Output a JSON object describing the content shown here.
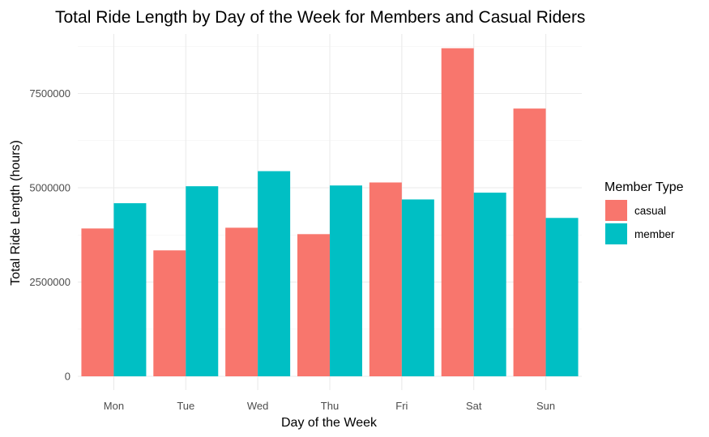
{
  "chart_data": {
    "type": "bar",
    "title": "Total Ride Length by Day of the Week for Members and Casual Riders",
    "xlabel": "Day of the Week",
    "ylabel": "Total Ride Length (hours)",
    "categories": [
      "Mon",
      "Tue",
      "Wed",
      "Thu",
      "Fri",
      "Sat",
      "Sun"
    ],
    "series": [
      {
        "name": "casual",
        "color": "#F8766D",
        "values": [
          3920000,
          3340000,
          3940000,
          3770000,
          5140000,
          8700000,
          7100000
        ]
      },
      {
        "name": "member",
        "color": "#00BFC4",
        "values": [
          4590000,
          5040000,
          5440000,
          5060000,
          4690000,
          4870000,
          4200000
        ]
      }
    ],
    "y_ticks": [
      0,
      2500000,
      5000000,
      7500000
    ],
    "y_tick_labels": [
      "0",
      "2500000",
      "5000000",
      "7500000"
    ],
    "ylim": [
      0,
      9100000
    ],
    "legend": {
      "title": "Member Type",
      "position": "right"
    },
    "grid": true
  }
}
